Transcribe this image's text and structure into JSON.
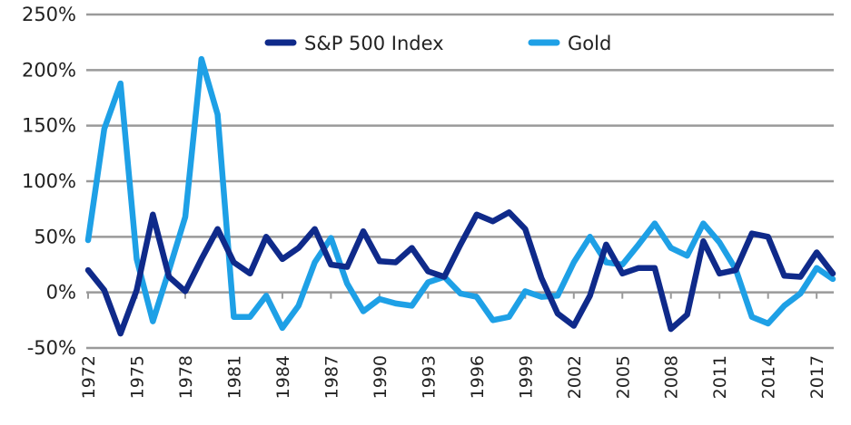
{
  "chart_data": {
    "type": "line",
    "title": "",
    "xlabel": "",
    "ylabel": "",
    "ylim": [
      -50,
      250
    ],
    "yticks": [
      250,
      200,
      150,
      100,
      50,
      0,
      -50
    ],
    "ytick_labels": [
      "250%",
      "200%",
      "150%",
      "100%",
      "50%",
      "0%",
      "-50%"
    ],
    "xlim": [
      1972,
      2018
    ],
    "xtick_labels": [
      "1972",
      "1975",
      "1978",
      "1981",
      "1984",
      "1987",
      "1990",
      "1993",
      "1996",
      "1999",
      "2002",
      "2005",
      "2008",
      "2011",
      "2014",
      "2017"
    ],
    "grid": true,
    "legend_position": "top-center",
    "x": [
      1972,
      1973,
      1974,
      1975,
      1976,
      1977,
      1978,
      1979,
      1980,
      1981,
      1982,
      1983,
      1984,
      1985,
      1986,
      1987,
      1988,
      1989,
      1990,
      1991,
      1992,
      1993,
      1994,
      1995,
      1996,
      1997,
      1998,
      1999,
      2000,
      2001,
      2002,
      2003,
      2004,
      2005,
      2006,
      2007,
      2008,
      2009,
      2010,
      2011,
      2012,
      2013,
      2014,
      2015,
      2016,
      2017,
      2018
    ],
    "series": [
      {
        "name": "S&P 500 Index",
        "color": "#0f2a8a",
        "values": [
          20,
          2,
          -37,
          2,
          70,
          14,
          1,
          30,
          57,
          27,
          17,
          50,
          30,
          40,
          57,
          25,
          23,
          55,
          28,
          27,
          40,
          19,
          14,
          43,
          70,
          64,
          72,
          57,
          13,
          -19,
          -30,
          -3,
          43,
          17,
          22,
          22,
          -33,
          -20,
          46,
          17,
          20,
          53,
          50,
          15,
          14,
          36,
          17
        ]
      },
      {
        "name": "Gold",
        "color": "#1ea0e6",
        "values": [
          47,
          147,
          188,
          30,
          -26,
          20,
          68,
          210,
          160,
          -22,
          -22,
          -3,
          -32,
          -12,
          27,
          49,
          8,
          -17,
          -6,
          -10,
          -12,
          9,
          14,
          -1,
          -4,
          -25,
          -22,
          1,
          -4,
          -3,
          27,
          50,
          27,
          25,
          43,
          62,
          40,
          33,
          62,
          45,
          21,
          -22,
          -28,
          -12,
          -1,
          22,
          12
        ]
      }
    ]
  }
}
